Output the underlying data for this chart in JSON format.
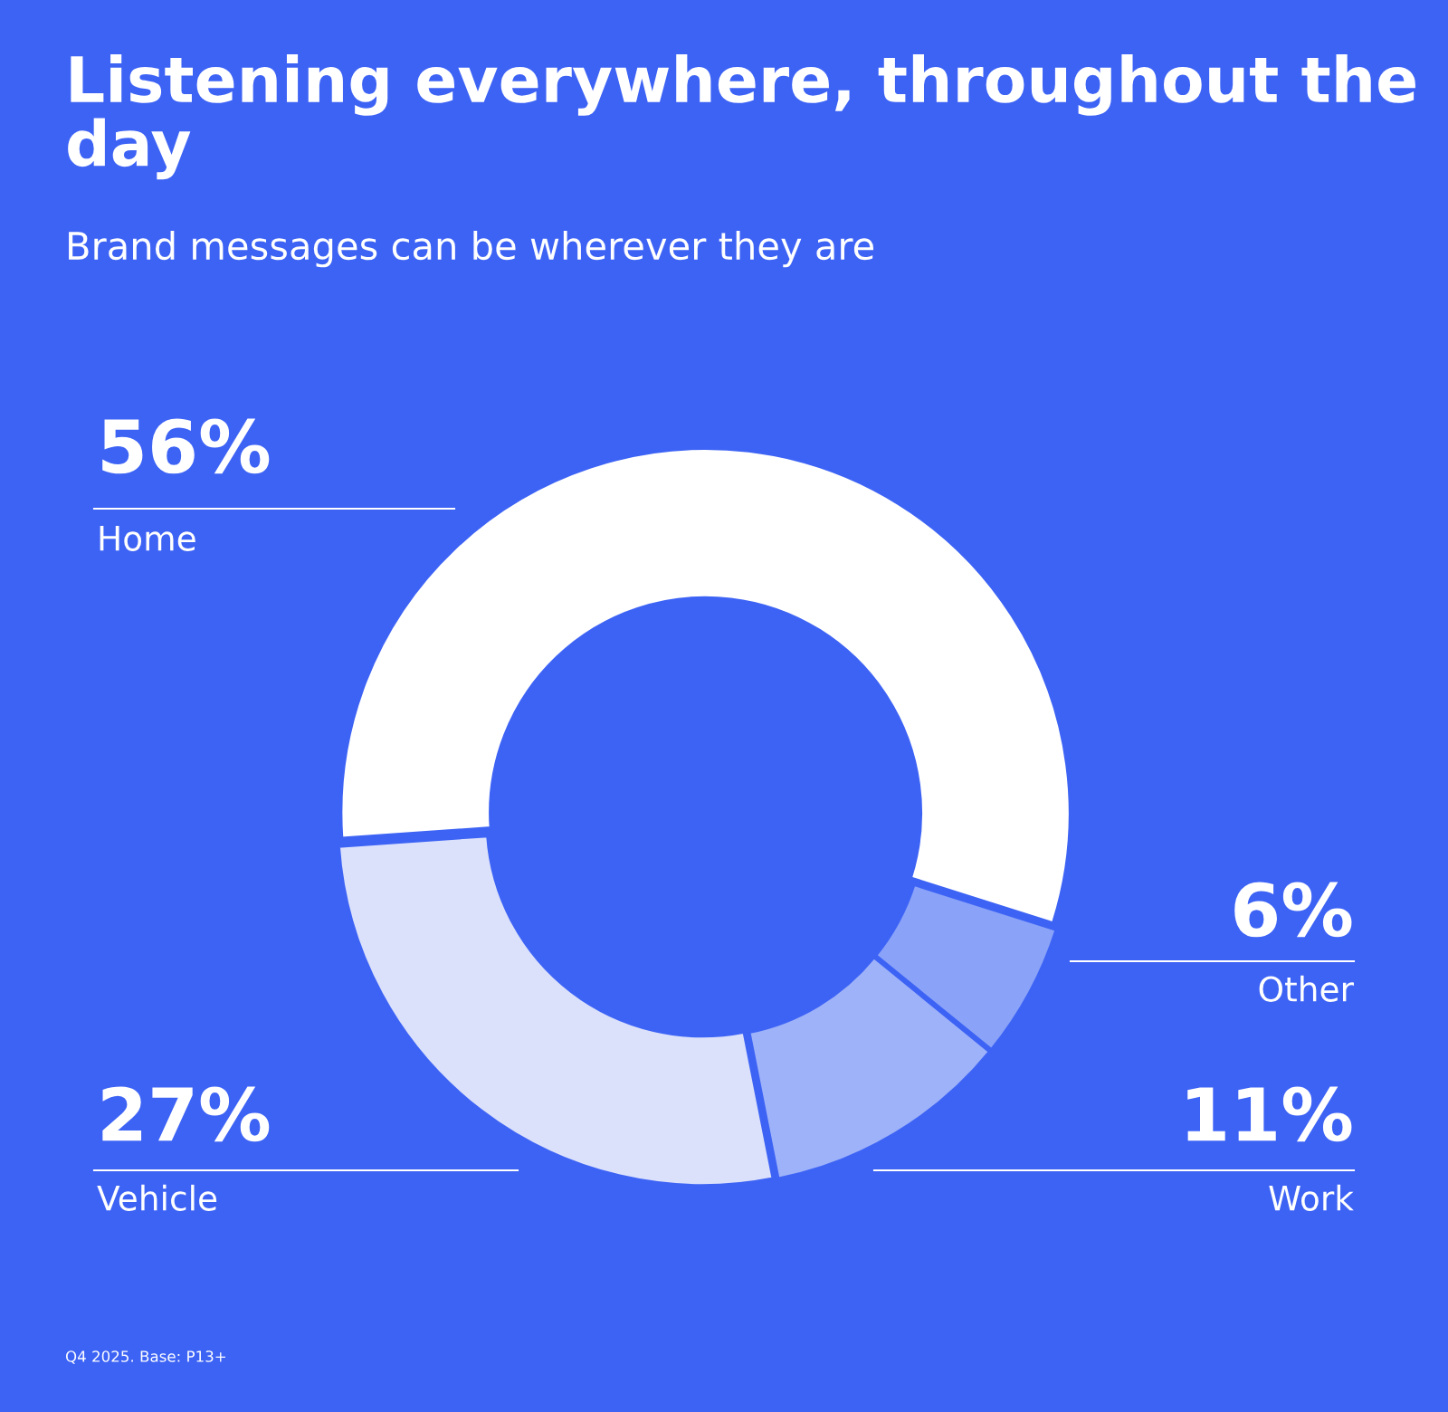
{
  "chart_data": {
    "type": "donut",
    "title": "Listening everywhere, throughout the day",
    "subtitle": "Brand messages can be wherever they are",
    "categories": [
      "Home",
      "Other",
      "Work",
      "Vehicle"
    ],
    "values": [
      56,
      6,
      11,
      27
    ],
    "value_labels": [
      "56%",
      "6%",
      "11%",
      "27%"
    ],
    "colors": [
      "#ffffff",
      "#8aa3f8",
      "#9eb2f9",
      "#dbe1fb"
    ],
    "annotations": [
      "Q4 2025. Base: P13+"
    ]
  }
}
